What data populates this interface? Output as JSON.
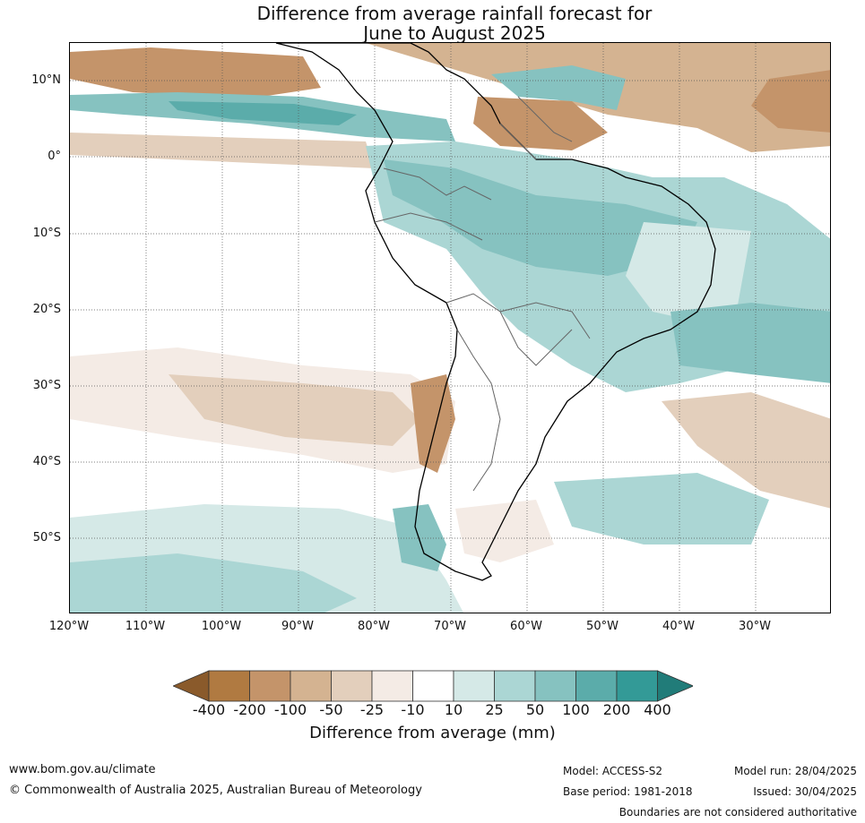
{
  "title_line1": "Difference from average rainfall forecast for",
  "title_line2": "June to August 2025",
  "lat_labels": [
    "10°N",
    "0°",
    "10°S",
    "20°S",
    "30°S",
    "40°S",
    "50°S"
  ],
  "lon_labels": [
    "120°W",
    "110°W",
    "100°W",
    "90°W",
    "80°W",
    "70°W",
    "60°W",
    "50°W",
    "40°W",
    "30°W"
  ],
  "colorbar": {
    "labels": [
      "-400",
      "-200",
      "-100",
      "-50",
      "-25",
      "-10",
      "10",
      "25",
      "50",
      "100",
      "200",
      "400"
    ],
    "colors": [
      "#8a5a2b",
      "#b07a41",
      "#c4946a",
      "#d4b391",
      "#e3cfbc",
      "#f4ebe5",
      "#ffffff",
      "#d5e9e7",
      "#abd6d4",
      "#86c2c0",
      "#5bacaa",
      "#339a97",
      "#217c79"
    ],
    "title": "Difference from average (mm)"
  },
  "footer": {
    "url": "www.bom.gov.au/climate",
    "copyright": "© Commonwealth of Australia 2025, Australian Bureau of Meteorology",
    "model": "Model: ACCESS-S2",
    "base_period": "Base period: 1981-2018",
    "model_run": "Model run: 28/04/2025",
    "issued": "Issued: 30/04/2025",
    "boundaries_note": "Boundaries are not considered authoritative"
  }
}
